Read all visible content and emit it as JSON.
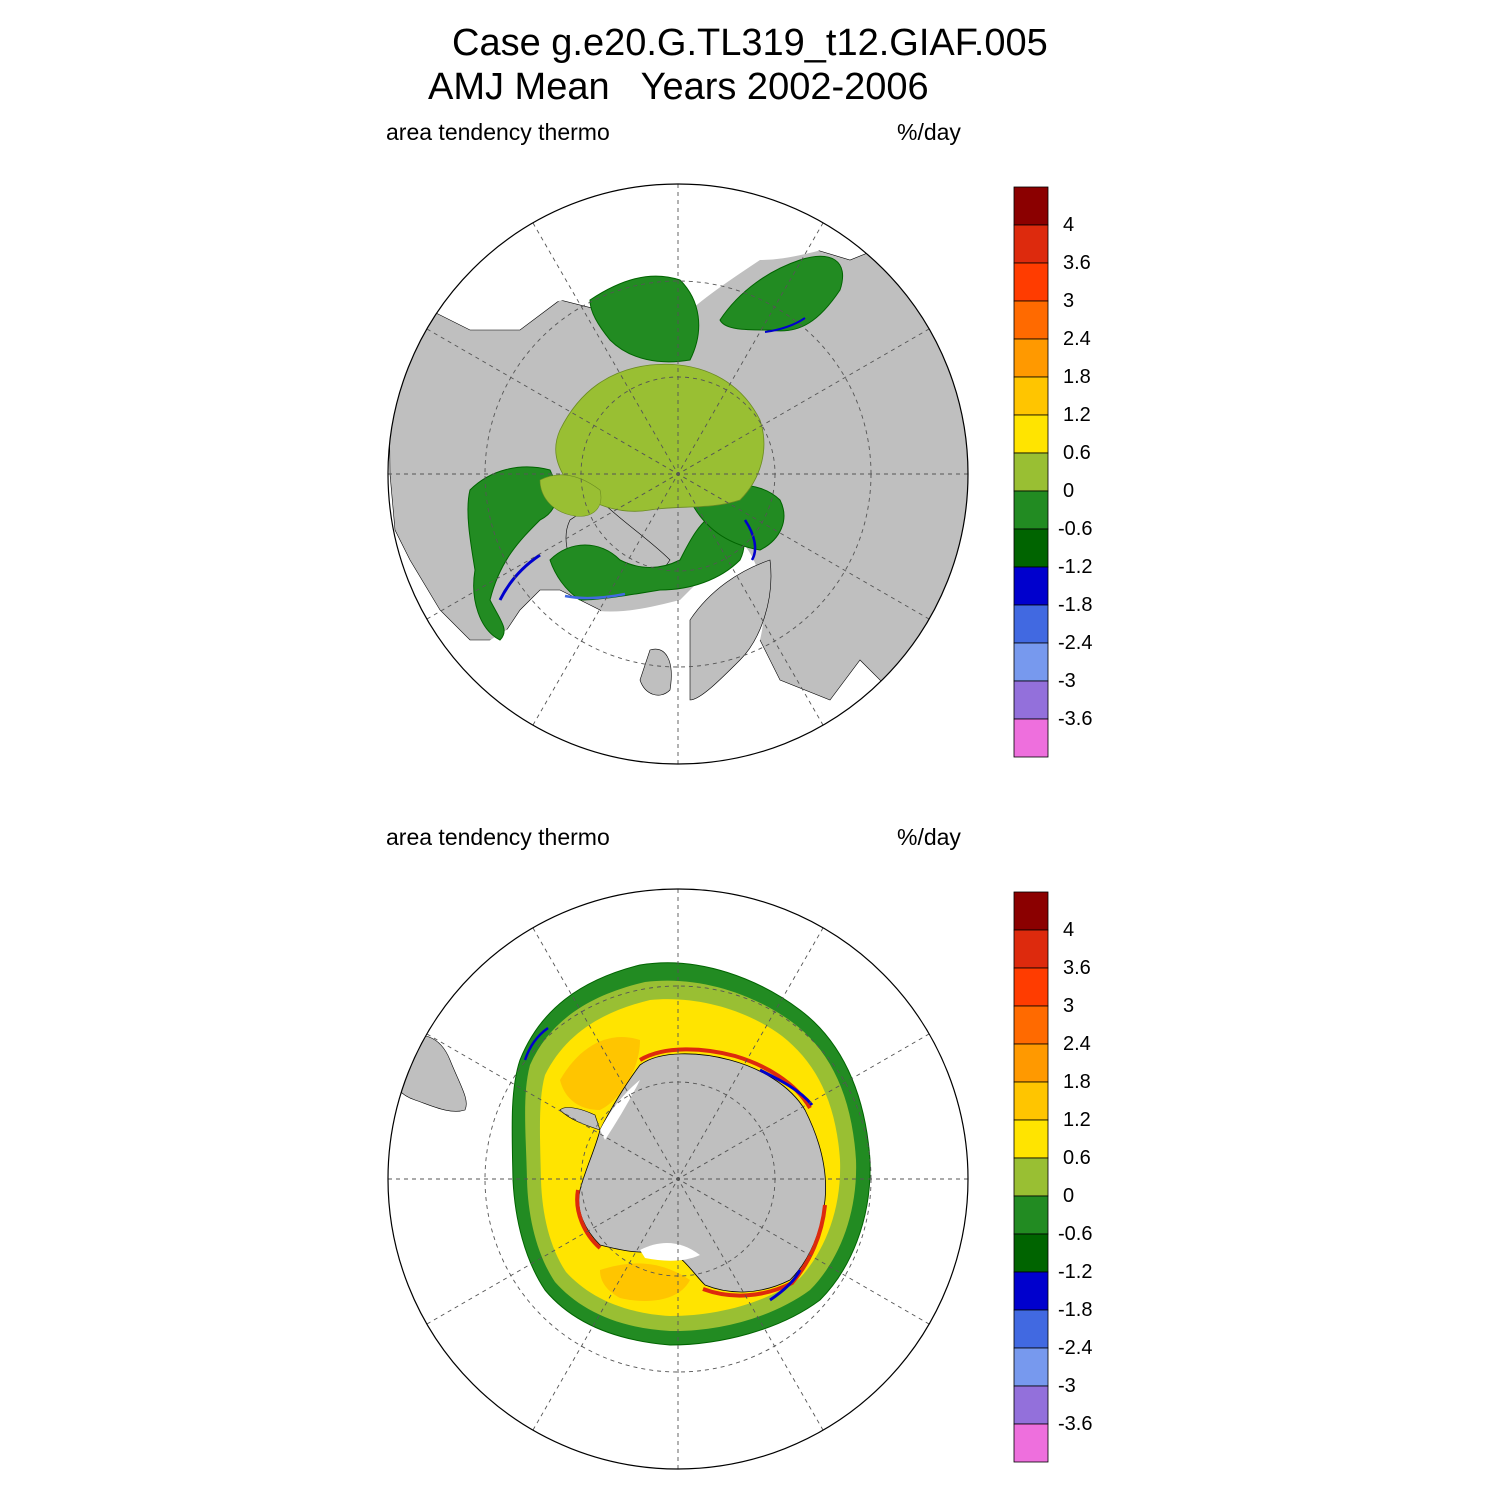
{
  "title": {
    "line1": "Case g.e20.G.TL319_t12.GIAF.005",
    "line2": "AMJ Mean   Years 2002-2006"
  },
  "panels": [
    {
      "id": "north",
      "left_label": "area tendency thermo",
      "right_label": "%/day"
    },
    {
      "id": "south",
      "left_label": "area tendency thermo",
      "right_label": "%/day"
    }
  ],
  "colorbar": {
    "colors": [
      "#8b0000",
      "#dd2a0d",
      "#ff3c00",
      "#ff6a00",
      "#ff9900",
      "#ffc500",
      "#ffe400",
      "#99bf33",
      "#228b22",
      "#006400",
      "#0000cd",
      "#4169e1",
      "#7799ee",
      "#9370db",
      "#ee6fdd"
    ],
    "labels": [
      "4",
      "3.6",
      "3",
      "2.4",
      "1.8",
      "1.2",
      "0.6",
      "0",
      "-0.6",
      "-1.2",
      "-1.8",
      "-2.4",
      "-3",
      "-3.6"
    ]
  },
  "colors": {
    "land": "#bfbfbf",
    "grid": "#555555"
  }
}
